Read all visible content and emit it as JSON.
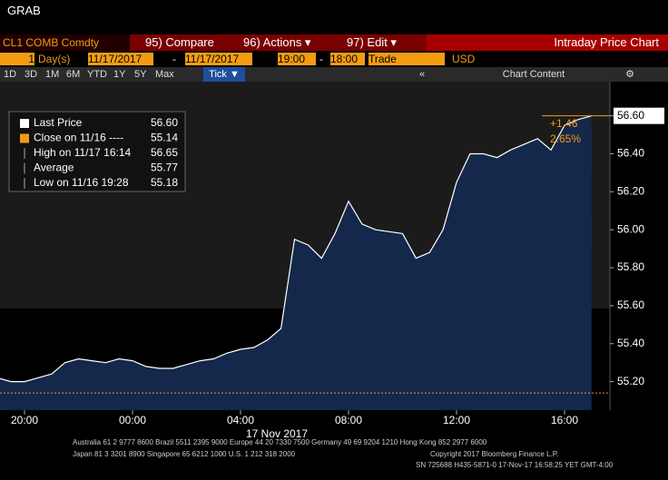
{
  "header": {
    "title": "GRAB",
    "security": "CL1 COMB Comdty",
    "menu": [
      "95) Compare",
      "96) Actions ▾",
      "97) Edit ▾"
    ],
    "window_title": "Intraday Price Chart"
  },
  "toolbar": {
    "period_count": "1",
    "period_unit": "Day(s)",
    "start_date": "11/17/2017",
    "dash1": "-",
    "end_date": "11/17/2017",
    "start_time": "19:00",
    "dash2": "-",
    "end_time": "18:00",
    "mode": "Trade",
    "currency": "USD",
    "ranges": [
      "1D",
      "3D",
      "1M",
      "6M",
      "YTD",
      "1Y",
      "5Y",
      "Max"
    ],
    "active": "Tick ▼",
    "collapse": "«",
    "chart_content": "Chart Content"
  },
  "legend": [
    {
      "label": "Last Price",
      "value": "56.60"
    },
    {
      "label": "Close on 11/16 ----",
      "value": "55.14"
    },
    {
      "label": "High on 11/17 16:14",
      "value": "56.65"
    },
    {
      "label": "Average",
      "value": "55.77"
    },
    {
      "label": "Low on 11/16 19:28",
      "value": "55.18"
    }
  ],
  "chart_data": {
    "type": "line",
    "date_label": "17 Nov 2017",
    "categories": [
      null,
      null,
      "20:00",
      null,
      null,
      null,
      null,
      null,
      null,
      null,
      "00:00",
      null,
      null,
      null,
      null,
      null,
      null,
      null,
      "04:00",
      null,
      null,
      null,
      null,
      null,
      null,
      null,
      "08:00",
      null,
      null,
      null,
      null,
      null,
      null,
      null,
      "12:00",
      null,
      null,
      null,
      null,
      null,
      null,
      null,
      "16:00",
      null,
      null
    ],
    "series": [
      {
        "name": "Last Price",
        "color": "#ffffff",
        "fill": "#13284a",
        "values": [
          55.22,
          55.2,
          55.2,
          55.22,
          55.24,
          55.3,
          55.32,
          55.31,
          55.3,
          55.32,
          55.31,
          55.28,
          55.27,
          55.27,
          55.29,
          55.31,
          55.32,
          55.35,
          55.37,
          55.38,
          55.42,
          55.48,
          55.95,
          55.92,
          55.85,
          55.98,
          56.15,
          56.03,
          56.0,
          55.99,
          55.98,
          55.85,
          55.88,
          56.0,
          56.25,
          56.4,
          56.4,
          56.38,
          56.42,
          56.45,
          56.48,
          56.42,
          56.55,
          56.58,
          56.6
        ]
      }
    ],
    "ylim": [
      55.05,
      56.78
    ],
    "yticks": [
      {
        "value": 55.2,
        "label": "55.20"
      },
      {
        "value": 55.4,
        "label": "55.40"
      },
      {
        "value": 55.6,
        "label": "55.60"
      },
      {
        "value": 55.8,
        "label": "55.80"
      },
      {
        "value": 56.0,
        "label": "56.00"
      },
      {
        "value": 56.2,
        "label": "56.20"
      },
      {
        "value": 56.4,
        "label": "56.40"
      },
      {
        "value": 56.6,
        "label": "56.60"
      }
    ],
    "hlines": [
      {
        "value": 55.14,
        "color": "#f39c12",
        "style": "dotted"
      },
      {
        "value": 56.6,
        "color": "#f39c12",
        "style": "solid"
      }
    ],
    "last_label": "56.60",
    "annotations": [
      "+1.46",
      "2.65%"
    ]
  },
  "footer": [
    "Australia 61 2 9777 8600 Brazil 5511 2395 9000 Europe 44 20 7330 7500 Germany 49 69 9204 1210 Hong Kong 852 2977 6000",
    "Japan 81 3 3201 8900     Singapore 65 6212 1000     U.S. 1 212 318 2000",
    "Copyright 2017 Bloomberg Finance L.P.",
    "SN 725688 H435-5871-0 17-Nov-17 16:58:25 YET  GMT-4:00"
  ]
}
